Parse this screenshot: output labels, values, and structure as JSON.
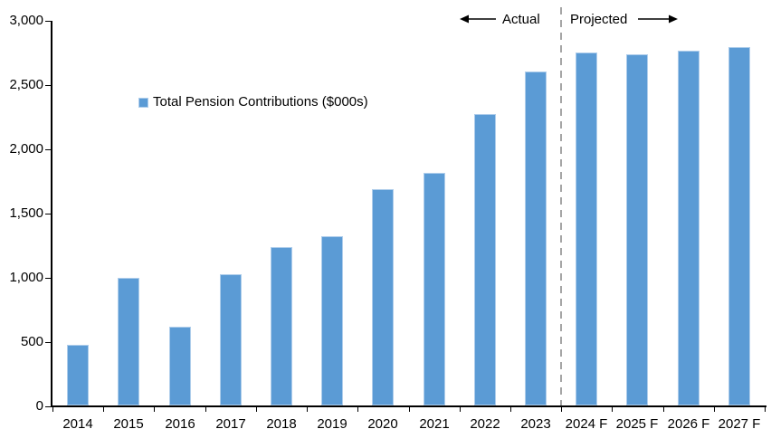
{
  "chart_data": {
    "type": "bar",
    "title": "",
    "legend": "Total Pension Contributions ($000s)",
    "legend_position": "inside-upper-left",
    "categories": [
      "2014",
      "2015",
      "2016",
      "2017",
      "2018",
      "2019",
      "2020",
      "2021",
      "2022",
      "2023",
      "2024 F",
      "2025 F",
      "2026 F",
      "2027 F"
    ],
    "values": [
      470,
      990,
      610,
      1020,
      1230,
      1320,
      1680,
      1810,
      2270,
      2600,
      2745,
      2730,
      2760,
      2790
    ],
    "xlabel": "",
    "ylabel": "",
    "ylim": [
      0,
      3000
    ],
    "ytick_interval": 500,
    "grid": false,
    "annotations": {
      "actual_label": "Actual",
      "projected_label": "Projected",
      "divider_between": [
        "2023",
        "2024 F"
      ]
    },
    "colors": {
      "bar_fill": "#5B9BD5",
      "bar_border": "#AECDEB",
      "axis": "#000000",
      "divider": "#A6A6A6",
      "text": "#000000"
    }
  }
}
